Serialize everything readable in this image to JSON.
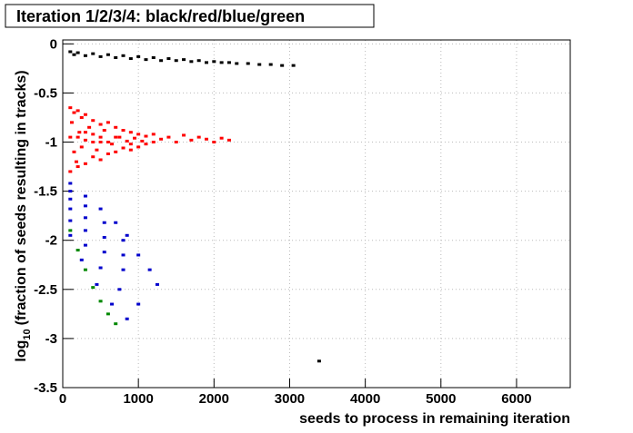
{
  "chart_data": {
    "type": "scatter",
    "title": "Iteration 1/2/3/4: black/red/blue/green",
    "xlabel": "seeds to process in remaining iteration",
    "ylabel": "log",
    "ylabel_sub": "10",
    "ylabel_rest": "(fraction of seeds resulting in tracks)",
    "xlim": [
      0,
      6710
    ],
    "ylim": [
      -3.5,
      0.04
    ],
    "xticks": [
      0,
      1000,
      2000,
      3000,
      4000,
      5000,
      6000
    ],
    "yticks": [
      -3.5,
      -3,
      -2.5,
      -2,
      -1.5,
      -1,
      -0.5,
      0
    ],
    "grid": true,
    "series": [
      {
        "color": "#000000",
        "x": [
          100,
          150,
          200,
          300,
          400,
          500,
          600,
          700,
          800,
          900,
          1000,
          1100,
          1200,
          1300,
          1400,
          1500,
          1600,
          1700,
          1800,
          1900,
          2000,
          2100,
          2200,
          2300,
          2450,
          2600,
          2750,
          2900,
          3050,
          3390
        ],
        "y": [
          -0.08,
          -0.11,
          -0.09,
          -0.12,
          -0.1,
          -0.13,
          -0.11,
          -0.14,
          -0.12,
          -0.15,
          -0.13,
          -0.16,
          -0.14,
          -0.17,
          -0.15,
          -0.17,
          -0.16,
          -0.18,
          -0.17,
          -0.19,
          -0.18,
          -0.19,
          -0.19,
          -0.2,
          -0.2,
          -0.21,
          -0.21,
          -0.22,
          -0.22,
          -3.23
        ]
      },
      {
        "color": "#ff0000",
        "x": [
          100,
          100,
          100,
          120,
          150,
          150,
          180,
          200,
          200,
          220,
          250,
          250,
          300,
          300,
          300,
          350,
          400,
          400,
          400,
          450,
          500,
          500,
          500,
          550,
          600,
          600,
          650,
          700,
          700,
          750,
          800,
          800,
          850,
          900,
          900,
          950,
          1000,
          1000,
          1100,
          1100,
          1200,
          1200,
          1300,
          1400,
          1500,
          1600,
          1700,
          1800,
          1900,
          2000,
          2100,
          2200,
          300,
          500,
          700,
          900,
          200,
          400,
          600,
          1050
        ],
        "y": [
          -0.65,
          -1.3,
          -0.95,
          -0.8,
          -1.1,
          -0.7,
          -1.2,
          -0.68,
          -1.25,
          -0.9,
          -1.05,
          -0.75,
          -0.72,
          -1.22,
          -0.98,
          -0.85,
          -1.15,
          -0.78,
          -1.0,
          -1.08,
          -0.82,
          -1.18,
          -0.95,
          -0.88,
          -1.12,
          -0.8,
          -1.02,
          -0.85,
          -1.1,
          -0.95,
          -0.88,
          -1.06,
          -0.99,
          -0.9,
          -1.08,
          -0.96,
          -0.92,
          -1.05,
          -0.94,
          -1.02,
          -0.92,
          -1.0,
          -0.97,
          -0.95,
          -1.0,
          -0.93,
          -0.98,
          -0.95,
          -0.97,
          -1.0,
          -0.96,
          -0.98,
          -0.9,
          -1.0,
          -0.95,
          -1.02,
          -0.95,
          -0.92,
          -1.0,
          -0.99
        ]
      },
      {
        "color": "#0000cc",
        "x": [
          100,
          300,
          500,
          700,
          850,
          100,
          300,
          550,
          800,
          1000,
          100,
          300,
          550,
          800,
          1150,
          100,
          300,
          550,
          800,
          1250,
          100,
          300,
          500,
          750,
          1000,
          100,
          250,
          450,
          650,
          850
        ],
        "y": [
          -1.42,
          -1.55,
          -1.68,
          -1.82,
          -1.95,
          -1.5,
          -1.65,
          -1.82,
          -2.0,
          -2.15,
          -1.58,
          -1.77,
          -1.97,
          -2.15,
          -2.3,
          -1.68,
          -1.9,
          -2.12,
          -2.3,
          -2.45,
          -1.8,
          -2.05,
          -2.28,
          -2.5,
          -2.65,
          -1.95,
          -2.2,
          -2.45,
          -2.65,
          -2.8
        ]
      },
      {
        "color": "#008800",
        "x": [
          100,
          200,
          300,
          400,
          500,
          600,
          700
        ],
        "y": [
          -1.9,
          -2.1,
          -2.3,
          -2.48,
          -2.62,
          -2.75,
          -2.85
        ]
      }
    ]
  }
}
